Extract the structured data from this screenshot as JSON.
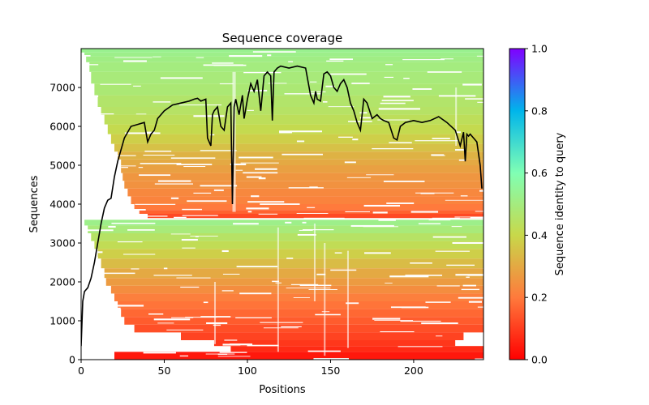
{
  "chart_data": {
    "type": "heatmap",
    "title": "Sequence coverage",
    "xlabel": "Positions",
    "ylabel": "Sequences",
    "xlim": [
      0,
      242
    ],
    "ylim": [
      0,
      8000
    ],
    "x_ticks": [
      0,
      50,
      100,
      150,
      200
    ],
    "y_ticks": [
      0,
      1000,
      2000,
      3000,
      4000,
      5000,
      6000,
      7000
    ],
    "colorbar": {
      "label": "Sequence identity to query",
      "range": [
        0.0,
        1.0
      ],
      "ticks": [
        "0.0",
        "0.2",
        "0.4",
        "0.6",
        "0.8",
        "1.0"
      ],
      "colormap": "rainbow_r",
      "stops": [
        "#ff0000",
        "#ff7a3c",
        "#c8d84a",
        "#80ffb4",
        "#00b5eb",
        "#8000ff"
      ]
    },
    "heatmap_gap_y": 3620,
    "coverage_line": {
      "name": "coverage",
      "color": "#000000",
      "x": [
        0,
        1,
        2,
        4,
        6,
        8,
        10,
        12,
        14,
        16,
        18,
        20,
        22,
        24,
        26,
        30,
        34,
        38,
        40,
        42,
        44,
        46,
        48,
        50,
        55,
        60,
        65,
        68,
        70,
        72,
        75,
        76,
        78,
        79,
        80,
        82,
        84,
        86,
        88,
        90,
        91,
        92,
        93,
        95,
        97,
        98,
        100,
        102,
        104,
        106,
        108,
        110,
        112,
        114,
        115,
        116,
        118,
        120,
        125,
        130,
        135,
        138,
        140,
        141,
        142,
        144,
        146,
        148,
        150,
        152,
        154,
        156,
        158,
        160,
        162,
        164,
        166,
        168,
        170,
        172,
        175,
        178,
        180,
        182,
        185,
        188,
        190,
        192,
        195,
        200,
        205,
        210,
        215,
        220,
        225,
        228,
        230,
        231,
        232,
        233,
        234,
        236,
        238,
        240,
        241
      ],
      "y": [
        350,
        1500,
        1750,
        1850,
        2100,
        2500,
        3000,
        3500,
        3900,
        4100,
        4150,
        4700,
        5100,
        5400,
        5700,
        6000,
        6050,
        6100,
        5600,
        5800,
        5900,
        6200,
        6300,
        6400,
        6550,
        6600,
        6650,
        6700,
        6720,
        6650,
        6700,
        5700,
        5500,
        6300,
        6400,
        6500,
        6000,
        5900,
        6500,
        6600,
        4000,
        6500,
        6700,
        6300,
        6800,
        6200,
        6700,
        7100,
        6900,
        7200,
        6400,
        7300,
        7400,
        7300,
        6150,
        7400,
        7500,
        7550,
        7500,
        7550,
        7500,
        6800,
        6600,
        6900,
        6700,
        6650,
        7350,
        7400,
        7300,
        7000,
        6900,
        7100,
        7200,
        7000,
        6600,
        6400,
        6100,
        5900,
        6700,
        6600,
        6200,
        6300,
        6200,
        6150,
        6100,
        5700,
        5650,
        6000,
        6100,
        6150,
        6100,
        6150,
        6250,
        6100,
        5900,
        5500,
        5850,
        5100,
        5800,
        5750,
        5800,
        5700,
        5600,
        5000,
        4400
      ]
    },
    "rows": [
      [
        7900,
        8000,
        0.53,
        0,
        242
      ],
      [
        7800,
        7900,
        0.52,
        2,
        242
      ],
      [
        7650,
        7800,
        0.51,
        3,
        242
      ],
      [
        7400,
        7650,
        0.5,
        5,
        242
      ],
      [
        7100,
        7400,
        0.49,
        6,
        242
      ],
      [
        6800,
        7100,
        0.48,
        8,
        242
      ],
      [
        6500,
        6800,
        0.46,
        10,
        242
      ],
      [
        6300,
        6500,
        0.45,
        12,
        242
      ],
      [
        6050,
        6300,
        0.43,
        14,
        242
      ],
      [
        5800,
        6050,
        0.41,
        16,
        242
      ],
      [
        5550,
        5800,
        0.38,
        18,
        242
      ],
      [
        5350,
        5550,
        0.35,
        20,
        242
      ],
      [
        5150,
        5350,
        0.32,
        22,
        242
      ],
      [
        5000,
        5150,
        0.3,
        24,
        242
      ],
      [
        4800,
        5000,
        0.28,
        24,
        242
      ],
      [
        4600,
        4800,
        0.26,
        25,
        242
      ],
      [
        4400,
        4600,
        0.25,
        26,
        242
      ],
      [
        4200,
        4400,
        0.23,
        28,
        242
      ],
      [
        4000,
        4200,
        0.22,
        30,
        242
      ],
      [
        3850,
        4000,
        0.2,
        32,
        242
      ],
      [
        3750,
        3850,
        0.16,
        35,
        242
      ],
      [
        3620,
        3750,
        0.12,
        40,
        242
      ],
      [
        3450,
        3600,
        0.52,
        2,
        242
      ],
      [
        3250,
        3450,
        0.49,
        4,
        242
      ],
      [
        3050,
        3250,
        0.45,
        6,
        242
      ],
      [
        2850,
        3050,
        0.42,
        8,
        242
      ],
      [
        2600,
        2850,
        0.38,
        10,
        242
      ],
      [
        2350,
        2600,
        0.34,
        12,
        242
      ],
      [
        2100,
        2350,
        0.3,
        14,
        242
      ],
      [
        1900,
        2100,
        0.27,
        15,
        242
      ],
      [
        1700,
        1900,
        0.24,
        18,
        242
      ],
      [
        1500,
        1700,
        0.21,
        20,
        242
      ],
      [
        1300,
        1500,
        0.19,
        22,
        242
      ],
      [
        1100,
        1300,
        0.17,
        24,
        242
      ],
      [
        900,
        1100,
        0.15,
        26,
        242
      ],
      [
        700,
        900,
        0.13,
        32,
        242
      ],
      [
        500,
        700,
        0.11,
        60,
        230
      ],
      [
        350,
        500,
        0.09,
        80,
        225
      ],
      [
        200,
        350,
        0.07,
        90,
        242
      ],
      [
        0,
        200,
        0.04,
        20,
        242
      ]
    ]
  }
}
